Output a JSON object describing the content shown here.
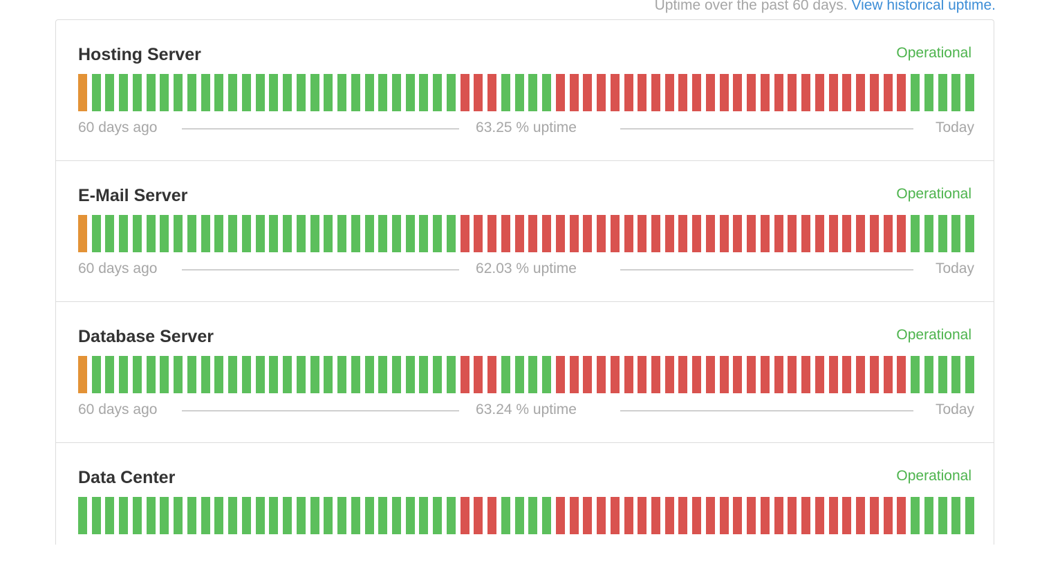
{
  "header": {
    "text": "Uptime over the past 60 days.",
    "link": "View historical uptime."
  },
  "colors": {
    "operational": "#5cbf5c",
    "major_outage": "#d9534f",
    "partial_outage": "#e39236",
    "status_text": "#4cb34c"
  },
  "components": [
    {
      "name": "Hosting Server",
      "status": "Operational",
      "left_label": "60 days ago",
      "uptime_label": "63.25 % uptime",
      "right_label": "Today",
      "days": "pgggggggggggggggggggggggggggrrrggggrrrrrrrrrrrrrrrrrrrrrrrrrrggggg"
    },
    {
      "name": "E-Mail Server",
      "status": "Operational",
      "left_label": "60 days ago",
      "uptime_label": "62.03 % uptime",
      "right_label": "Today",
      "days": "pgggggggggggggggggggggggggggrrrrrrrrrrrrrrrrrrrrrrrrrrrrrrrrrggggg"
    },
    {
      "name": "Database Server",
      "status": "Operational",
      "left_label": "60 days ago",
      "uptime_label": "63.24 % uptime",
      "right_label": "Today",
      "days": "pgggggggggggggggggggggggggggrrrggggrrrrrrrrrrrrrrrrrrrrrrrrrrggggg"
    },
    {
      "name": "Data Center",
      "status": "Operational",
      "left_label": "",
      "uptime_label": "",
      "right_label": "",
      "days": "ggggggggggggggggggggggggggggrrrggggrrrrrrrrrrrrrrrrrrrrrrrrrrggggg"
    }
  ]
}
